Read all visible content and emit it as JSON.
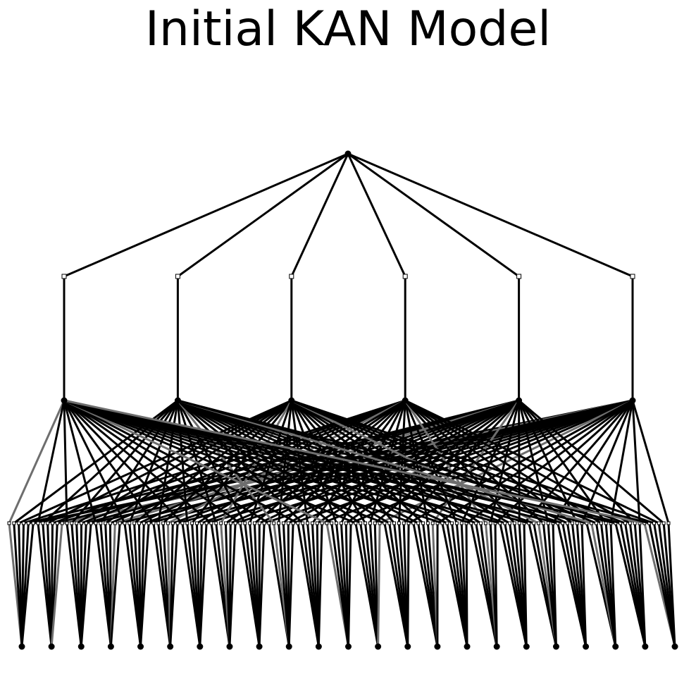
{
  "title": "Initial KAN Model",
  "network": {
    "widths": [
      23,
      6,
      1
    ],
    "input_nodes": 23,
    "hidden_nodes": 6,
    "output_nodes": 1
  },
  "colors": {
    "edge": "#000000",
    "edge_faint": "#6e6e6e",
    "node": "#000000",
    "background": "#ffffff"
  }
}
